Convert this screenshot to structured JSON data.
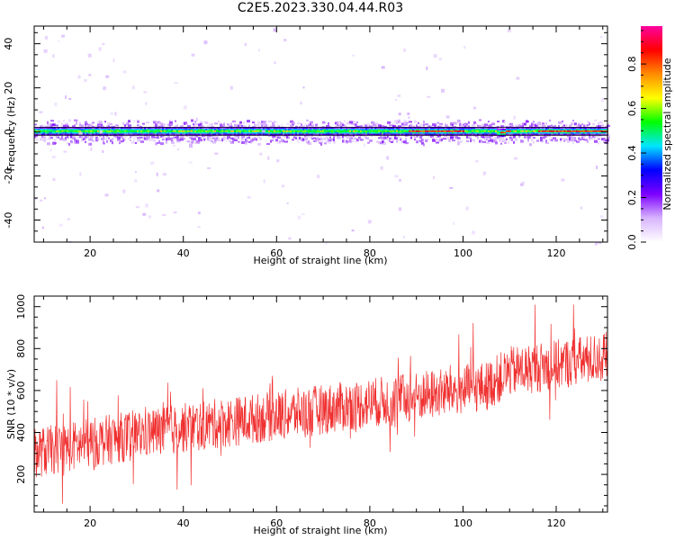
{
  "title": "C2E5.2023.330.04.44.R03",
  "chart_data": [
    {
      "type": "heatmap",
      "xlabel": "Height of straight line (km)",
      "ylabel": "Frequency (Hz)",
      "xlim": [
        8,
        131
      ],
      "ylim": [
        -50,
        48
      ],
      "xticks": [
        "20",
        "40",
        "60",
        "80",
        "100",
        "120"
      ],
      "yticks": [
        "40",
        "20",
        "0",
        "-20",
        "-40"
      ],
      "colorbar": {
        "label": "Normalized spectral amplitude",
        "range": [
          0,
          0.97
        ],
        "ticks": [
          "0.0",
          "0.2",
          "0.4",
          "0.6",
          "0.8"
        ],
        "colors": [
          "#ffffff",
          "#d8b4fe",
          "#7c00ff",
          "#0000ff",
          "#00e5ff",
          "#00ff00",
          "#ffff00",
          "#ff8c00",
          "#ff0000",
          "#ff00a0"
        ]
      },
      "band": {
        "center_hz": 0.3,
        "halfwidth_hz": 1.8,
        "max_segments_km": [
          [
            88,
            100
          ],
          [
            108,
            110
          ],
          [
            116,
            131
          ]
        ],
        "notch_km": [
          107,
          109
        ]
      },
      "grid": false
    },
    {
      "type": "line",
      "xlabel": "Height of straight line (km)",
      "ylabel": "SNR (10 * v/v)",
      "xlim": [
        8,
        131
      ],
      "ylim": [
        20,
        1050
      ],
      "xticks": [
        "20",
        "40",
        "60",
        "80",
        "100",
        "120"
      ],
      "yticks": [
        "200",
        "400",
        "600",
        "800",
        "1000"
      ],
      "color": "#f03030",
      "trend_x": [
        8,
        30,
        50,
        70,
        90,
        105,
        110,
        131
      ],
      "trend_y": [
        300,
        390,
        450,
        510,
        570,
        620,
        690,
        760
      ],
      "envelope_halfwidth": 120,
      "grid": false
    }
  ]
}
